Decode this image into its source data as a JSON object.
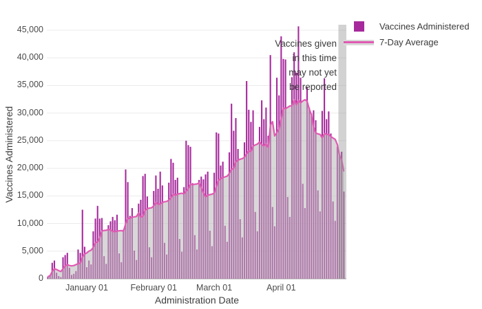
{
  "chart_data": {
    "type": "bar",
    "title": "",
    "x_axis": {
      "label": "Administration Date",
      "tick_labels": [
        "January 01",
        "February 01",
        "March 01",
        "April 01"
      ],
      "tick_day_indices": [
        18,
        49,
        77,
        108
      ],
      "total_days": 138
    },
    "y_axis": {
      "label": "Vaccines Administered",
      "tick_values": [
        0,
        5000,
        10000,
        15000,
        20000,
        25000,
        30000,
        35000,
        40000,
        45000
      ],
      "tick_labels": [
        "0",
        "5,000",
        "10,000",
        "15,000",
        "20,000",
        "25,000",
        "30,000",
        "35,000",
        "40,000",
        "45,000"
      ],
      "range": [
        0,
        46000
      ]
    },
    "series": [
      {
        "name": "Vaccines Administered",
        "type": "bar",
        "color": "#a62a9c",
        "values": [
          400,
          700,
          2900,
          3300,
          1100,
          500,
          300,
          3900,
          4300,
          4700,
          2000,
          700,
          900,
          1400,
          5300,
          4700,
          12500,
          5800,
          2100,
          3300,
          2600,
          8600,
          10900,
          13200,
          10900,
          11000,
          4100,
          2700,
          9700,
          10400,
          11200,
          10600,
          11600,
          4600,
          3000,
          8900,
          19800,
          17500,
          11400,
          12800,
          5100,
          3400,
          13600,
          14300,
          18600,
          19000,
          14900,
          5700,
          3900,
          15900,
          18700,
          16300,
          19400,
          16900,
          6500,
          4400,
          17400,
          21700,
          21000,
          17900,
          18300,
          7200,
          4900,
          16600,
          25000,
          24200,
          23900,
          17300,
          7900,
          5300,
          17900,
          18500,
          18000,
          18900,
          19400,
          8700,
          5900,
          19200,
          26500,
          26300,
          20500,
          21200,
          9600,
          6700,
          22900,
          31700,
          26800,
          29100,
          23500,
          10800,
          7500,
          24700,
          35800,
          30600,
          28400,
          30500,
          12100,
          8600,
          27500,
          32300,
          28900,
          31000,
          25900,
          40500,
          13000,
          9500,
          36400,
          33200,
          43900,
          39800,
          39700,
          14800,
          11200,
          36500,
          41000,
          37300,
          45700,
          36400,
          17200,
          12800,
          34700,
          31000,
          29900,
          30500,
          28700,
          16000,
          12200,
          30400,
          36300,
          28900,
          30300,
          26300,
          14000,
          10500,
          23900,
          22500,
          23000,
          15800
        ]
      },
      {
        "name": "7-Day Average",
        "type": "line",
        "derived": "trailing 7-day mean of daily values",
        "color": "#e05ab2",
        "area_color": "rgba(184,184,184,0.55)"
      }
    ],
    "annotation": {
      "lines": [
        "Vaccines given",
        "in this time",
        "may not yet",
        "be reported"
      ],
      "region": {
        "start_day_index": 135,
        "end_day_index": 137,
        "fill": "rgba(148,148,148,0.42)"
      }
    },
    "legend": [
      {
        "label": "Vaccines Administered",
        "marker": "square"
      },
      {
        "label": "7-Day Average",
        "marker": "line"
      }
    ],
    "grid": {
      "horizontal": true,
      "vertical": false,
      "color": "#ebebeb",
      "zero_line_color": "#999999"
    }
  }
}
